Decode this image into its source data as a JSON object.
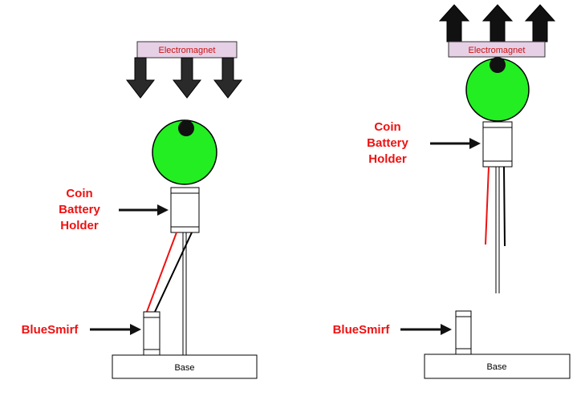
{
  "left_scene": {
    "electromagnet_label": "Electromagnet",
    "coin_battery_label": [
      "Coin",
      "Battery",
      "Holder"
    ],
    "bluesmirf_label": "BlueSmirf",
    "base_label": "Base"
  },
  "right_scene": {
    "electromagnet_label": "Electromagnet",
    "coin_battery_label": [
      "Coin",
      "Battery",
      "Holder"
    ],
    "bluesmirf_label": "BlueSmirf",
    "base_label": "Base"
  },
  "colors": {
    "label_red": "#ee1111",
    "ball_green": "#22ee22",
    "electromagnet_fill": "#e6d0e6",
    "electromagnet_text": "#cc1111",
    "wire_red": "#ee1111",
    "arrow_black": "#111111"
  }
}
